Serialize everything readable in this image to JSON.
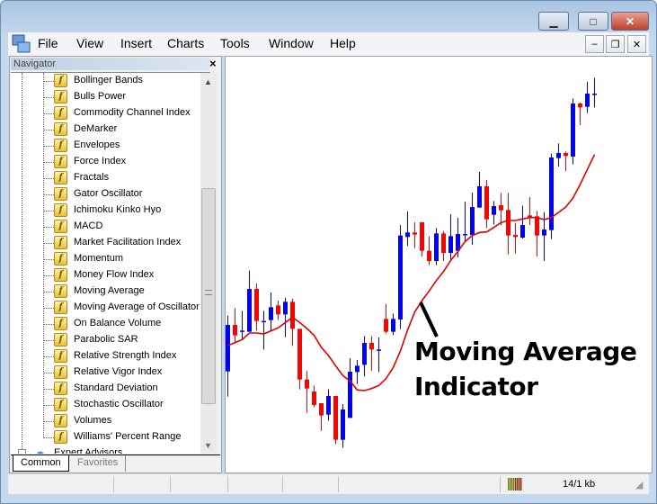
{
  "window": {
    "buttons": {
      "minimize": "▁",
      "maximize": "□",
      "close": "✕"
    }
  },
  "menu": [
    "File",
    "View",
    "Insert",
    "Charts",
    "Tools",
    "Window",
    "Help"
  ],
  "mdi_buttons": {
    "minimize": "–",
    "restore": "❐",
    "close": "✕"
  },
  "navigator": {
    "title": "Navigator",
    "close": "×",
    "items": [
      "Bollinger Bands",
      "Bulls Power",
      "Commodity Channel Index",
      "DeMarker",
      "Envelopes",
      "Force Index",
      "Fractals",
      "Gator Oscillator",
      "Ichimoku Kinko Hyo",
      "MACD",
      "Market Facilitation Index",
      "Momentum",
      "Money Flow Index",
      "Moving Average",
      "Moving Average of Oscillator",
      "On Balance Volume",
      "Parabolic SAR",
      "Relative Strength Index",
      "Relative Vigor Index",
      "Standard Deviation",
      "Stochastic Oscillator",
      "Volumes",
      "Williams' Percent Range"
    ],
    "partial_item": "Expert Advisors",
    "tabs": [
      "Common",
      "Favorites"
    ],
    "active_tab": "Common"
  },
  "status": {
    "traffic": "14/1 kb"
  },
  "annotation": {
    "line1": "Moving Average",
    "line2": "Indicator"
  },
  "colors": {
    "bull": "#0000ff",
    "bear": "#ff0000",
    "ma": "#e00000"
  },
  "chart_data": {
    "type": "candlestick",
    "candles": [
      [
        302,
        488,
        218,
        457
      ],
      [
        457,
        513,
        395,
        422
      ],
      [
        438,
        504,
        410,
        438
      ],
      [
        434,
        638,
        434,
        577
      ],
      [
        577,
        595,
        438,
        470
      ],
      [
        470,
        504,
        375,
        470
      ],
      [
        473,
        565,
        438,
        516
      ],
      [
        522,
        538,
        473,
        492
      ],
      [
        492,
        548,
        416,
        534
      ],
      [
        534,
        545,
        387,
        444
      ],
      [
        444,
        444,
        242,
        275
      ],
      [
        275,
        304,
        164,
        245
      ],
      [
        235,
        255,
        183,
        190
      ],
      [
        196,
        196,
        104,
        155
      ],
      [
        158,
        242,
        138,
        220
      ],
      [
        220,
        220,
        60,
        74
      ],
      [
        74,
        193,
        48,
        175
      ],
      [
        147,
        346,
        147,
        301
      ],
      [
        300,
        340,
        260,
        321
      ],
      [
        324,
        420,
        285,
        397
      ],
      [
        397,
        420,
        304,
        375
      ],
      [
        375,
        415,
        300,
        375
      ],
      [
        477,
        527,
        428,
        434
      ],
      [
        434,
        495,
        423,
        477
      ],
      [
        475,
        790,
        443,
        755
      ],
      [
        750,
        835,
        720,
        765
      ],
      [
        765,
        799,
        713,
        758
      ],
      [
        799,
        799,
        685,
        704
      ],
      [
        704,
        752,
        656,
        670
      ],
      [
        670,
        780,
        656,
        762
      ],
      [
        762,
        770,
        670,
        697
      ],
      [
        697,
        826,
        670,
        753
      ],
      [
        704,
        814,
        682,
        760
      ],
      [
        760,
        868,
        734,
        760
      ],
      [
        757,
        898,
        724,
        850
      ],
      [
        848,
        967,
        848,
        919
      ],
      [
        919,
        940,
        780,
        809
      ],
      [
        824,
        870,
        792,
        853
      ],
      [
        856,
        897,
        790,
        839
      ],
      [
        840,
        897,
        692,
        755
      ],
      [
        757,
        797,
        695,
        750
      ],
      [
        748,
        855,
        745,
        790
      ],
      [
        822,
        883,
        790,
        816
      ],
      [
        819,
        837,
        685,
        755
      ],
      [
        755,
        833,
        670,
        775
      ],
      [
        773,
        1028,
        743,
        1015
      ],
      [
        1013,
        1062,
        985,
        1030
      ],
      [
        1030,
        1035,
        970,
        1020
      ],
      [
        1018,
        1212,
        992,
        1195
      ],
      [
        1195,
        1198,
        1123,
        1182
      ],
      [
        1184,
        1267,
        1163,
        1228
      ],
      [
        1228,
        1280,
        1182,
        1228
      ]
    ],
    "moving_average": [
      388,
      398,
      408,
      430,
      430,
      427,
      437,
      447,
      465,
      482,
      465,
      445,
      422,
      382,
      355,
      320,
      288,
      270,
      240,
      238,
      245,
      255,
      278,
      315,
      370,
      440,
      500,
      538,
      570,
      605,
      635,
      672,
      702,
      735,
      755,
      765,
      767,
      782,
      798,
      805,
      805,
      810,
      815,
      815,
      808,
      815,
      832,
      850,
      880,
      925,
      975,
      1025
    ]
  }
}
